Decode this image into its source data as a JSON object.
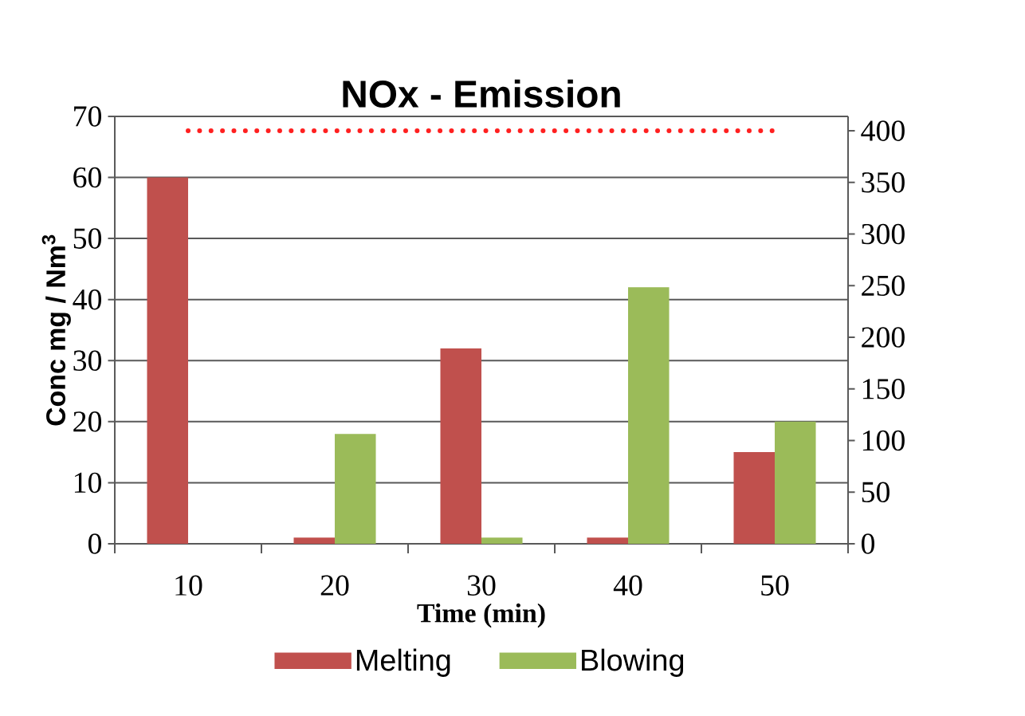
{
  "chart_data": {
    "type": "bar",
    "title": "NOx - Emission",
    "xlabel": "Time  (min)",
    "ylabel": "Conc mg / Nm$^{3}$",
    "categories": [
      "10",
      "20",
      "30",
      "40",
      "50"
    ],
    "series": [
      {
        "name": "Melting",
        "color": "#c0504d",
        "values": [
          60,
          1,
          32,
          1,
          15
        ]
      },
      {
        "name": "Blowing",
        "color": "#9bbb59",
        "values": [
          0,
          18,
          1,
          42,
          20
        ]
      },
      {
        "type": "line",
        "axis": "y2",
        "color": "#ff2020",
        "line_style": "dotted",
        "values": [
          400,
          400,
          400,
          400,
          400
        ]
      }
    ],
    "ylim": [
      0,
      70
    ],
    "yticks": [
      0,
      10,
      20,
      30,
      40,
      50,
      60,
      70
    ],
    "y2lim": [
      0,
      414
    ],
    "y2ticks": [
      0,
      50,
      100,
      150,
      200,
      250,
      300,
      350,
      400
    ],
    "grid": "y",
    "legend": "bottom"
  }
}
